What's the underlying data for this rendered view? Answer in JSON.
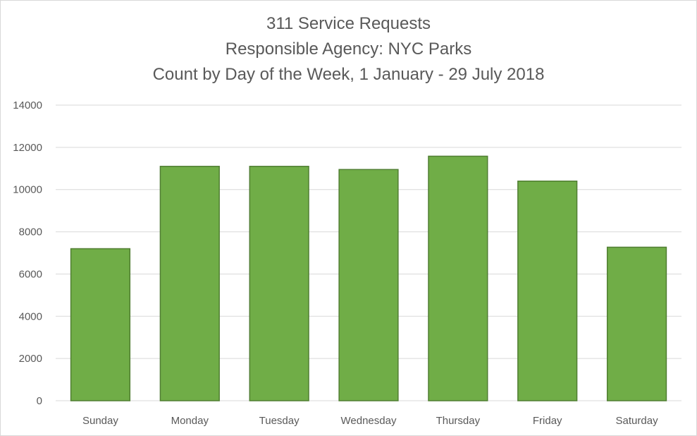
{
  "chart_data": {
    "type": "bar",
    "title_lines": [
      "311 Service Requests",
      "Responsible Agency: NYC Parks",
      "Count by Day of the Week, 1 January - 29 July 2018"
    ],
    "categories": [
      "Sunday",
      "Monday",
      "Tuesday",
      "Wednesday",
      "Thursday",
      "Friday",
      "Saturday"
    ],
    "values": [
      7200,
      11100,
      11100,
      10950,
      11580,
      10400,
      7270
    ],
    "ylim": [
      0,
      14000
    ],
    "yticks": [
      0,
      2000,
      4000,
      6000,
      8000,
      10000,
      12000,
      14000
    ],
    "xlabel": "",
    "ylabel": "",
    "grid": true,
    "legend": "none",
    "bar_color": "#70ad47",
    "bar_edge_color": "#507e32"
  }
}
